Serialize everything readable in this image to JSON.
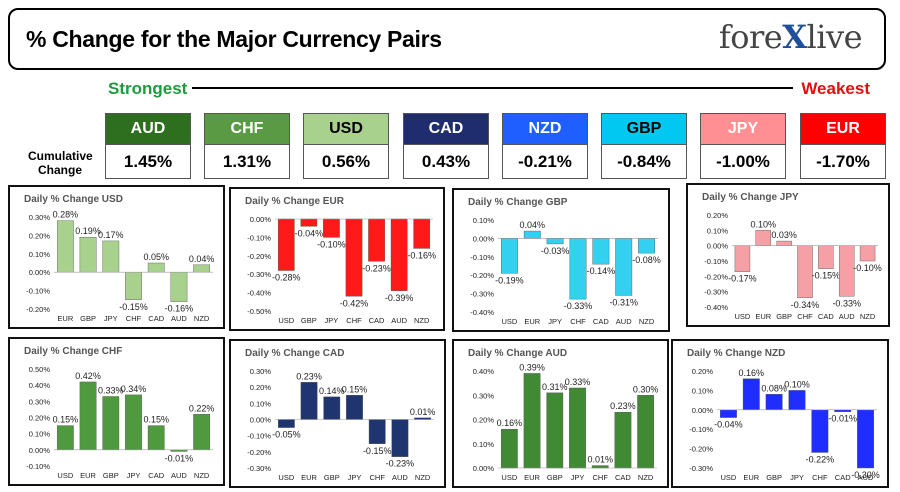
{
  "header": {
    "title": "% Change for the Major Currency Pairs",
    "logo_left": "fore",
    "logo_x": "X",
    "logo_right": "live"
  },
  "labels": {
    "strongest": "Strongest",
    "weakest": "Weakest",
    "cumulative": "Cumulative Change"
  },
  "currencies": [
    {
      "code": "AUD",
      "value": "1.45%",
      "bg": "#2e6e1f",
      "fg": "#ffffff"
    },
    {
      "code": "CHF",
      "value": "1.31%",
      "bg": "#5a9a45",
      "fg": "#ffffff"
    },
    {
      "code": "USD",
      "value": "0.56%",
      "bg": "#a9d18e",
      "fg": "#000000"
    },
    {
      "code": "CAD",
      "value": "0.43%",
      "bg": "#1f2d6e",
      "fg": "#ffffff"
    },
    {
      "code": "NZD",
      "value": "-0.21%",
      "bg": "#1f5fff",
      "fg": "#ffffff"
    },
    {
      "code": "GBP",
      "value": "-0.84%",
      "bg": "#00c8f0",
      "fg": "#000000"
    },
    {
      "code": "JPY",
      "value": "-1.00%",
      "bg": "#ff8f92",
      "fg": "#ffffff"
    },
    {
      "code": "EUR",
      "value": "-1.70%",
      "bg": "#ff0000",
      "fg": "#ffffff"
    }
  ],
  "chart_data": [
    {
      "type": "bar",
      "title": "Daily % Change USD",
      "color": "#a9d18e",
      "categories": [
        "EUR",
        "GBP",
        "JPY",
        "CHF",
        "CAD",
        "AUD",
        "NZD"
      ],
      "values": [
        0.28,
        0.19,
        0.17,
        -0.15,
        0.05,
        -0.16,
        0.04
      ],
      "labels": [
        "0.28%",
        "0.19%",
        "0.17%",
        "-0.15%",
        "0.05%",
        "-0.16%",
        "0.04%"
      ],
      "ylim": [
        -0.2,
        0.3
      ],
      "yticks": [
        -0.2,
        -0.1,
        0.0,
        0.1,
        0.2,
        0.3
      ],
      "ytick_labels": [
        "-0.20%",
        "-0.10%",
        "0.00%",
        "0.10%",
        "0.20%",
        "0.30%"
      ]
    },
    {
      "type": "bar",
      "title": "Daily % Change EUR",
      "color": "#ff1a1a",
      "categories": [
        "USD",
        "GBP",
        "JPY",
        "CHF",
        "CAD",
        "AUD",
        "NZD"
      ],
      "values": [
        -0.28,
        -0.04,
        -0.1,
        -0.42,
        -0.23,
        -0.39,
        -0.16
      ],
      "labels": [
        "-0.28%",
        "-0.04%",
        "-0.10%",
        "-0.42%",
        "-0.23%",
        "-0.39%",
        "-0.16%"
      ],
      "ylim": [
        -0.5,
        0.0
      ],
      "yticks": [
        -0.5,
        -0.4,
        -0.3,
        -0.2,
        -0.1,
        0.0
      ],
      "ytick_labels": [
        "-0.50%",
        "-0.40%",
        "-0.30%",
        "-0.20%",
        "-0.10%",
        "0.00%"
      ]
    },
    {
      "type": "bar",
      "title": "Daily % Change GBP",
      "color": "#33d0f0",
      "categories": [
        "USD",
        "EUR",
        "JPY",
        "CHF",
        "CAD",
        "AUD",
        "NZD"
      ],
      "values": [
        -0.19,
        0.04,
        -0.03,
        -0.33,
        -0.14,
        -0.31,
        -0.08
      ],
      "labels": [
        "-0.19%",
        "0.04%",
        "-0.03%",
        "-0.33%",
        "-0.14%",
        "-0.31%",
        "-0.08%"
      ],
      "ylim": [
        -0.4,
        0.1
      ],
      "yticks": [
        -0.4,
        -0.3,
        -0.2,
        -0.1,
        0.0,
        0.1
      ],
      "ytick_labels": [
        "-0.40%",
        "-0.30%",
        "-0.20%",
        "-0.10%",
        "0.00%",
        "0.10%"
      ]
    },
    {
      "type": "bar",
      "title": "Daily % Change JPY",
      "color": "#f4a0a4",
      "categories": [
        "USD",
        "EUR",
        "GBP",
        "CHF",
        "CAD",
        "AUD",
        "NZD"
      ],
      "values": [
        -0.17,
        0.1,
        0.03,
        -0.34,
        -0.15,
        -0.33,
        -0.1
      ],
      "labels": [
        "-0.17%",
        "0.10%",
        "0.03%",
        "-0.34%",
        "-0.15%",
        "-0.33%",
        "-0.10%"
      ],
      "ylim": [
        -0.4,
        0.2
      ],
      "yticks": [
        -0.4,
        -0.3,
        -0.2,
        -0.1,
        0.0,
        0.1,
        0.2
      ],
      "ytick_labels": [
        "-0.40%",
        "-0.30%",
        "-0.20%",
        "-0.10%",
        "0.00%",
        "0.10%",
        "0.20%"
      ]
    },
    {
      "type": "bar",
      "title": "Daily % Change CHF",
      "color": "#4f9a3e",
      "categories": [
        "USD",
        "EUR",
        "GBP",
        "JPY",
        "CAD",
        "AUD",
        "NZD"
      ],
      "values": [
        0.15,
        0.42,
        0.33,
        0.34,
        0.15,
        -0.01,
        0.22
      ],
      "labels": [
        "0.15%",
        "0.42%",
        "0.33%",
        "0.34%",
        "0.15%",
        "-0.01%",
        "0.22%"
      ],
      "ylim": [
        -0.1,
        0.5
      ],
      "yticks": [
        -0.1,
        0.0,
        0.1,
        0.2,
        0.3,
        0.4,
        0.5
      ],
      "ytick_labels": [
        "-0.10%",
        "0.00%",
        "0.10%",
        "0.20%",
        "0.30%",
        "0.40%",
        "0.50%"
      ]
    },
    {
      "type": "bar",
      "title": "Daily % Change CAD",
      "color": "#1f3570",
      "categories": [
        "USD",
        "EUR",
        "GBP",
        "JPY",
        "CHF",
        "AUD",
        "NZD"
      ],
      "values": [
        -0.05,
        0.23,
        0.14,
        0.15,
        -0.15,
        -0.23,
        0.01
      ],
      "labels": [
        "-0.05%",
        "0.23%",
        "0.14%",
        "0.15%",
        "-0.15%",
        "-0.23%",
        "0.01%"
      ],
      "ylim": [
        -0.3,
        0.3
      ],
      "yticks": [
        -0.3,
        -0.2,
        -0.1,
        0.0,
        0.1,
        0.2,
        0.3
      ],
      "ytick_labels": [
        "-0.30%",
        "-0.20%",
        "-0.10%",
        "0.00%",
        "0.10%",
        "0.20%",
        "0.30%"
      ]
    },
    {
      "type": "bar",
      "title": "Daily % Change AUD",
      "color": "#3f8a33",
      "categories": [
        "USD",
        "EUR",
        "GBP",
        "JPY",
        "CHF",
        "CAD",
        "NZD"
      ],
      "values": [
        0.16,
        0.39,
        0.31,
        0.33,
        0.01,
        0.23,
        0.3
      ],
      "labels": [
        "0.16%",
        "0.39%",
        "0.31%",
        "0.33%",
        "0.01%",
        "0.23%",
        "0.30%"
      ],
      "ylim": [
        0.0,
        0.4
      ],
      "yticks": [
        0.0,
        0.1,
        0.2,
        0.3,
        0.4
      ],
      "ytick_labels": [
        "0.00%",
        "0.10%",
        "0.20%",
        "0.30%",
        "0.40%"
      ]
    },
    {
      "type": "bar",
      "title": "Daily % Change NZD",
      "color": "#1f2dff",
      "categories": [
        "USD",
        "EUR",
        "GBP",
        "JPY",
        "CHF",
        "CAD",
        "AUD"
      ],
      "values": [
        -0.04,
        0.16,
        0.08,
        0.1,
        -0.22,
        -0.01,
        -0.3
      ],
      "labels": [
        "-0.04%",
        "0.16%",
        "0.08%",
        "0.10%",
        "-0.22%",
        "-0.01%",
        "-0.30%"
      ],
      "ylim": [
        -0.3,
        0.2
      ],
      "yticks": [
        -0.3,
        -0.2,
        -0.1,
        0.0,
        0.1,
        0.2
      ],
      "ytick_labels": [
        "-0.30%",
        "-0.20%",
        "-0.10%",
        "0.00%",
        "0.10%",
        "0.20%"
      ]
    }
  ]
}
